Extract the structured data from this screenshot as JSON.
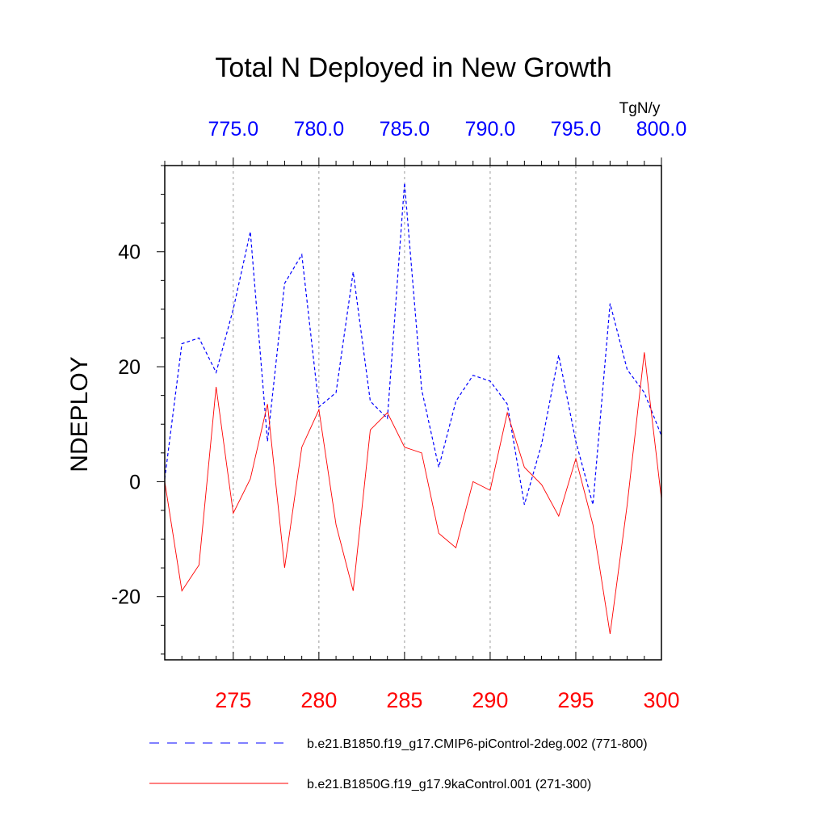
{
  "chart_data": {
    "type": "line",
    "title": "Total N Deployed in New Growth",
    "ylabel": "NDEPLOY",
    "units": "TgN/y",
    "ylim": [
      -31,
      55
    ],
    "yticks": [
      "-20",
      "0",
      "20",
      "40"
    ],
    "ytick_values": [
      -20,
      0,
      20,
      40
    ],
    "x_bottom": {
      "range": [
        271,
        300
      ],
      "ticks": [
        "275",
        "280",
        "285",
        "290",
        "295",
        "300"
      ],
      "tick_values": [
        275,
        280,
        285,
        290,
        295,
        300
      ],
      "color": "#ff0000"
    },
    "x_top": {
      "range": [
        771,
        800
      ],
      "ticks": [
        "775.0",
        "780.0",
        "785.0",
        "790.0",
        "795.0",
        "800.0"
      ],
      "tick_values": [
        775,
        780,
        785,
        790,
        795,
        800
      ],
      "color": "#0000ff"
    },
    "series": [
      {
        "name": "b.e21.B1850.f19_g17.CMIP6-piControl-2deg.002 (771-800)",
        "axis": "top",
        "color": "#0000ff",
        "style": "dashed",
        "x": [
          771,
          772,
          773,
          774,
          775,
          776,
          777,
          778,
          779,
          780,
          781,
          782,
          783,
          784,
          785,
          786,
          787,
          788,
          789,
          790,
          791,
          792,
          793,
          794,
          795,
          796,
          797,
          798,
          799,
          800
        ],
        "values": [
          0.5,
          24,
          25,
          19,
          30,
          43.5,
          7,
          34.5,
          39.5,
          13,
          15.5,
          36.5,
          14,
          11,
          52,
          16,
          2.5,
          14,
          18.5,
          17.5,
          13.5,
          -4,
          6.5,
          22,
          7,
          -4,
          31,
          19.5,
          15.5,
          8
        ]
      },
      {
        "name": "b.e21.B1850G.f19_g17.9kaControl.001 (271-300)",
        "axis": "bottom",
        "color": "#ff0000",
        "style": "solid",
        "x": [
          271,
          272,
          273,
          274,
          275,
          276,
          277,
          278,
          279,
          280,
          281,
          282,
          283,
          284,
          285,
          286,
          287,
          288,
          289,
          290,
          291,
          292,
          293,
          294,
          295,
          296,
          297,
          298,
          299,
          300
        ],
        "values": [
          0,
          -19,
          -14.5,
          16.5,
          -5.5,
          0.5,
          13.5,
          -15,
          6,
          12.5,
          -7.5,
          -19,
          9,
          12,
          6,
          5,
          -9,
          -11.5,
          0,
          -1.5,
          12,
          2.5,
          -0.5,
          -6,
          4,
          -7.5,
          -26.5,
          -4,
          22.5,
          -3
        ]
      }
    ]
  }
}
